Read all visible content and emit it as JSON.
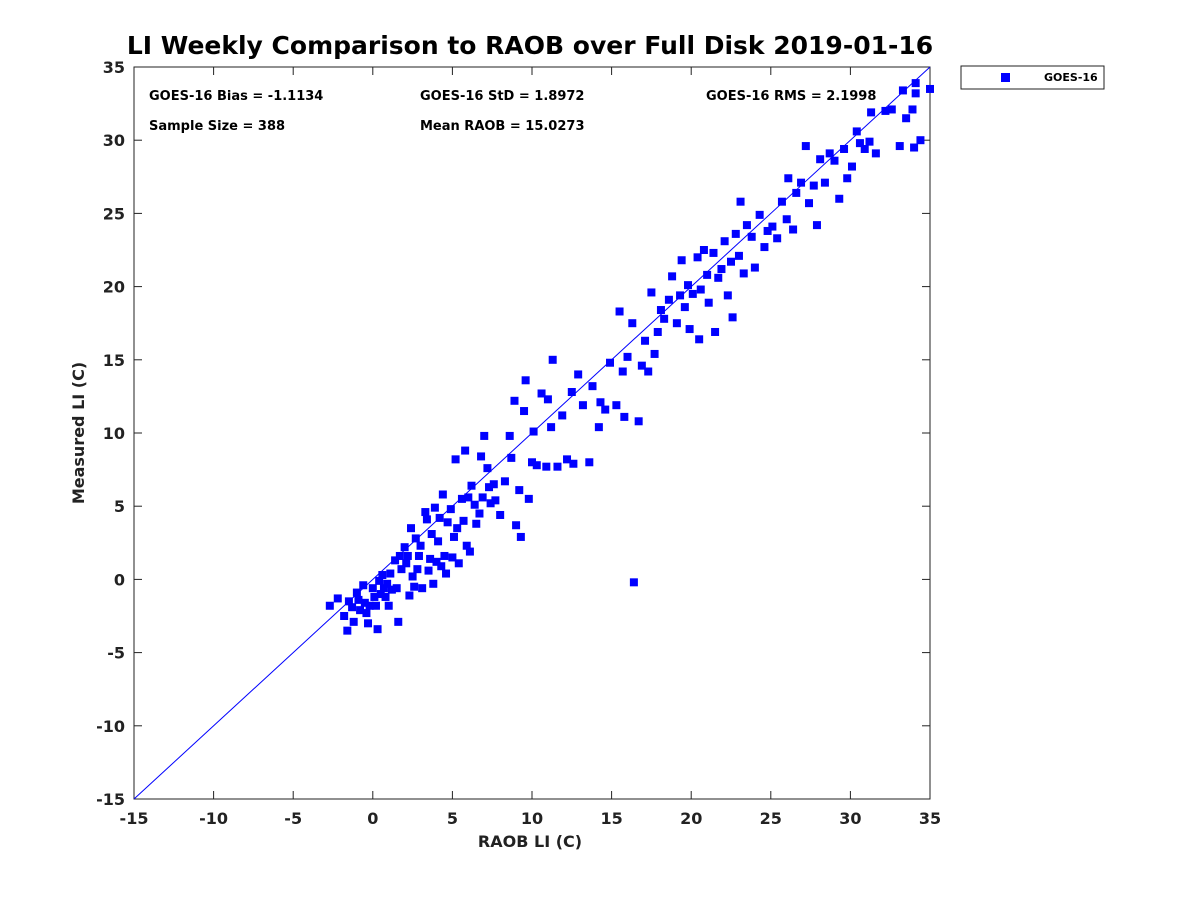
{
  "chart_data": {
    "type": "scatter",
    "title": "LI Weekly Comparison to RAOB over Full Disk 2019-01-16",
    "xlabel": "RAOB LI (C)",
    "ylabel": "Measured LI (C)",
    "xlim": [
      -15,
      35
    ],
    "ylim": [
      -15,
      35
    ],
    "xticks": [
      -15,
      -10,
      -5,
      0,
      5,
      10,
      15,
      20,
      25,
      30,
      35
    ],
    "yticks": [
      -15,
      -10,
      -5,
      0,
      5,
      10,
      15,
      20,
      25,
      30,
      35
    ],
    "grid": false,
    "legend_position": "outside-top-right",
    "reference_line": {
      "from": [
        -15,
        -15
      ],
      "to": [
        35,
        35
      ],
      "color": "#0000ff"
    },
    "series": [
      {
        "name": "GOES-16",
        "color": "#0000ff",
        "marker": "square",
        "points": [
          [
            -2.7,
            -1.8
          ],
          [
            -2.2,
            -1.3
          ],
          [
            -1.8,
            -2.5
          ],
          [
            -1.6,
            -3.5
          ],
          [
            -1.5,
            -1.5
          ],
          [
            -1.3,
            -1.9
          ],
          [
            -1.2,
            -2.9
          ],
          [
            -1,
            -0.9
          ],
          [
            -0.9,
            -1.4
          ],
          [
            -0.8,
            -2.1
          ],
          [
            -0.6,
            -0.4
          ],
          [
            -0.5,
            -1.6
          ],
          [
            -0.4,
            -2.3
          ],
          [
            -0.3,
            -3
          ],
          [
            -0.2,
            -1.8
          ],
          [
            0,
            -0.6
          ],
          [
            0.1,
            -1.2
          ],
          [
            0.2,
            -1.8
          ],
          [
            0.3,
            -3.4
          ],
          [
            0.4,
            -0.1
          ],
          [
            0.5,
            -1
          ],
          [
            0.6,
            0.3
          ],
          [
            0.7,
            -0.6
          ],
          [
            0.8,
            -1.2
          ],
          [
            0.9,
            -0.3
          ],
          [
            1,
            -1.8
          ],
          [
            1.1,
            0.4
          ],
          [
            1.2,
            -0.7
          ],
          [
            1.4,
            1.3
          ],
          [
            1.5,
            -0.6
          ],
          [
            1.6,
            -2.9
          ],
          [
            1.7,
            1.6
          ],
          [
            1.8,
            0.7
          ],
          [
            2,
            2.2
          ],
          [
            2.1,
            1.1
          ],
          [
            2.2,
            1.6
          ],
          [
            2.3,
            -1.1
          ],
          [
            2.4,
            3.5
          ],
          [
            2.5,
            0.2
          ],
          [
            2.6,
            -0.5
          ],
          [
            2.7,
            2.8
          ],
          [
            2.8,
            0.7
          ],
          [
            2.9,
            1.6
          ],
          [
            3,
            2.3
          ],
          [
            3.1,
            -0.6
          ],
          [
            3.3,
            4.6
          ],
          [
            3.4,
            4.1
          ],
          [
            3.5,
            0.6
          ],
          [
            3.6,
            1.4
          ],
          [
            3.7,
            3.1
          ],
          [
            3.8,
            -0.3
          ],
          [
            3.9,
            4.9
          ],
          [
            4,
            1.2
          ],
          [
            4.1,
            2.6
          ],
          [
            4.2,
            4.2
          ],
          [
            4.3,
            0.9
          ],
          [
            4.4,
            5.8
          ],
          [
            4.5,
            1.6
          ],
          [
            4.6,
            0.4
          ],
          [
            4.7,
            3.9
          ],
          [
            4.9,
            4.8
          ],
          [
            5,
            1.5
          ],
          [
            5.1,
            2.9
          ],
          [
            5.2,
            8.2
          ],
          [
            5.3,
            3.5
          ],
          [
            5.4,
            1.1
          ],
          [
            5.6,
            5.5
          ],
          [
            5.7,
            4
          ],
          [
            5.8,
            8.8
          ],
          [
            5.9,
            2.3
          ],
          [
            6,
            5.6
          ],
          [
            6.1,
            1.9
          ],
          [
            6.2,
            6.4
          ],
          [
            6.4,
            5.1
          ],
          [
            6.5,
            3.8
          ],
          [
            6.7,
            4.5
          ],
          [
            6.8,
            8.4
          ],
          [
            6.9,
            5.6
          ],
          [
            7,
            9.8
          ],
          [
            7.2,
            7.6
          ],
          [
            7.3,
            6.3
          ],
          [
            7.4,
            5.2
          ],
          [
            7.6,
            6.5
          ],
          [
            7.7,
            5.4
          ],
          [
            8,
            4.4
          ],
          [
            8.3,
            6.7
          ],
          [
            8.6,
            9.8
          ],
          [
            8.7,
            8.3
          ],
          [
            8.9,
            12.2
          ],
          [
            9,
            3.7
          ],
          [
            9.2,
            6.1
          ],
          [
            9.3,
            2.9
          ],
          [
            9.5,
            11.5
          ],
          [
            9.6,
            13.6
          ],
          [
            9.8,
            5.5
          ],
          [
            10,
            8
          ],
          [
            10.1,
            10.1
          ],
          [
            10.3,
            7.8
          ],
          [
            10.6,
            12.7
          ],
          [
            10.9,
            7.7
          ],
          [
            11,
            12.3
          ],
          [
            11.2,
            10.4
          ],
          [
            11.3,
            15
          ],
          [
            11.6,
            7.7
          ],
          [
            11.9,
            11.2
          ],
          [
            12.2,
            8.2
          ],
          [
            12.5,
            12.8
          ],
          [
            12.6,
            7.9
          ],
          [
            12.9,
            14
          ],
          [
            13.2,
            11.9
          ],
          [
            13.6,
            8
          ],
          [
            13.8,
            13.2
          ],
          [
            14.2,
            10.4
          ],
          [
            14.3,
            12.1
          ],
          [
            14.6,
            11.6
          ],
          [
            14.9,
            14.8
          ],
          [
            15.3,
            11.9
          ],
          [
            15.5,
            18.3
          ],
          [
            15.7,
            14.2
          ],
          [
            15.8,
            11.1
          ],
          [
            16,
            15.2
          ],
          [
            16.3,
            17.5
          ],
          [
            16.4,
            -0.2
          ],
          [
            16.7,
            10.8
          ],
          [
            16.9,
            14.6
          ],
          [
            17.1,
            16.3
          ],
          [
            17.3,
            14.2
          ],
          [
            17.5,
            19.6
          ],
          [
            17.7,
            15.4
          ],
          [
            17.9,
            16.9
          ],
          [
            18.1,
            18.4
          ],
          [
            18.3,
            17.8
          ],
          [
            18.6,
            19.1
          ],
          [
            18.8,
            20.7
          ],
          [
            19.1,
            17.5
          ],
          [
            19.3,
            19.4
          ],
          [
            19.4,
            21.8
          ],
          [
            19.6,
            18.6
          ],
          [
            19.8,
            20.1
          ],
          [
            19.9,
            17.1
          ],
          [
            20.1,
            19.5
          ],
          [
            20.4,
            22
          ],
          [
            20.5,
            16.4
          ],
          [
            20.6,
            19.8
          ],
          [
            20.8,
            22.5
          ],
          [
            21,
            20.8
          ],
          [
            21.1,
            18.9
          ],
          [
            21.4,
            22.3
          ],
          [
            21.5,
            16.9
          ],
          [
            21.7,
            20.6
          ],
          [
            21.9,
            21.2
          ],
          [
            22.1,
            23.1
          ],
          [
            22.3,
            19.4
          ],
          [
            22.5,
            21.7
          ],
          [
            22.6,
            17.9
          ],
          [
            22.8,
            23.6
          ],
          [
            23,
            22.1
          ],
          [
            23.1,
            25.8
          ],
          [
            23.3,
            20.9
          ],
          [
            23.5,
            24.2
          ],
          [
            23.8,
            23.4
          ],
          [
            24,
            21.3
          ],
          [
            24.3,
            24.9
          ],
          [
            24.6,
            22.7
          ],
          [
            24.8,
            23.8
          ],
          [
            25.1,
            24.1
          ],
          [
            25.4,
            23.3
          ],
          [
            25.7,
            25.8
          ],
          [
            26,
            24.6
          ],
          [
            26.1,
            27.4
          ],
          [
            26.4,
            23.9
          ],
          [
            26.6,
            26.4
          ],
          [
            26.9,
            27.1
          ],
          [
            27.2,
            29.6
          ],
          [
            27.4,
            25.7
          ],
          [
            27.7,
            26.9
          ],
          [
            27.9,
            24.2
          ],
          [
            28.1,
            28.7
          ],
          [
            28.4,
            27.1
          ],
          [
            28.7,
            29.1
          ],
          [
            29,
            28.6
          ],
          [
            29.3,
            26
          ],
          [
            29.6,
            29.4
          ],
          [
            29.8,
            27.4
          ],
          [
            30.1,
            28.2
          ],
          [
            30.4,
            30.6
          ],
          [
            30.6,
            29.8
          ],
          [
            30.9,
            29.4
          ],
          [
            31.2,
            29.9
          ],
          [
            31.3,
            31.9
          ],
          [
            31.6,
            29.1
          ],
          [
            32.2,
            32
          ],
          [
            32.6,
            32.1
          ],
          [
            33.1,
            29.6
          ],
          [
            33.3,
            33.4
          ],
          [
            33.5,
            31.5
          ],
          [
            33.9,
            32.1
          ],
          [
            34,
            29.5
          ],
          [
            34.1,
            33.9
          ],
          [
            34.1,
            33.2
          ],
          [
            34.4,
            30
          ],
          [
            35,
            33.5
          ]
        ]
      }
    ],
    "stats": [
      {
        "label": "GOES-16 Bias = -1.1134"
      },
      {
        "label": "GOES-16 StD = 1.8972"
      },
      {
        "label": "GOES-16 RMS = 2.1998"
      },
      {
        "label": "Sample Size = 388"
      },
      {
        "label": "Mean RAOB = 15.0273"
      }
    ]
  }
}
